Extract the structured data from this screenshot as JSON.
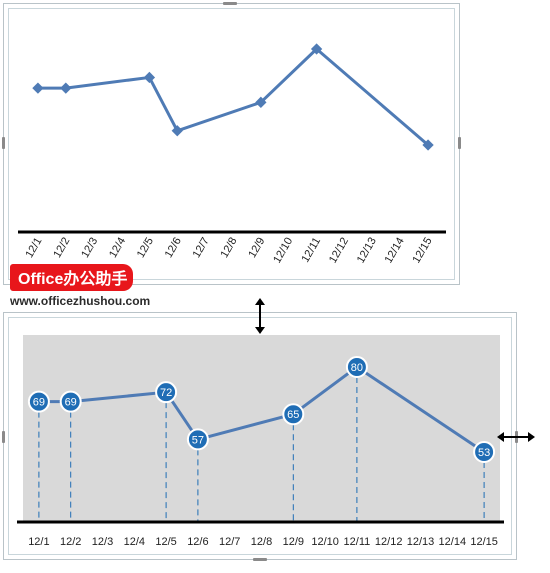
{
  "chart_data": [
    {
      "type": "line",
      "title": "",
      "xlabel": "",
      "ylabel": "",
      "categories": [
        "12/1",
        "12/2",
        "12/3",
        "12/4",
        "12/5",
        "12/6",
        "12/7",
        "12/8",
        "12/9",
        "12/10",
        "12/11",
        "12/12",
        "12/13",
        "12/14",
        "12/15"
      ],
      "series": [
        {
          "x": [
            "12/1",
            "12/2",
            "12/5",
            "12/6",
            "12/9",
            "12/11",
            "12/15"
          ],
          "values": [
            69,
            69,
            72,
            57,
            65,
            80,
            53
          ]
        }
      ],
      "data_labels": false,
      "drop_lines": false,
      "grid": false,
      "rotated_tick_labels": true,
      "ylim": [
        0,
        100
      ]
    },
    {
      "type": "line",
      "title": "",
      "xlabel": "",
      "ylabel": "",
      "categories": [
        "12/1",
        "12/2",
        "12/3",
        "12/4",
        "12/5",
        "12/6",
        "12/7",
        "12/8",
        "12/9",
        "12/10",
        "12/11",
        "12/12",
        "12/13",
        "12/14",
        "12/15"
      ],
      "series": [
        {
          "x": [
            "12/1",
            "12/2",
            "12/5",
            "12/6",
            "12/9",
            "12/11",
            "12/15"
          ],
          "values": [
            69,
            69,
            72,
            57,
            65,
            80,
            53
          ]
        }
      ],
      "data_labels": true,
      "drop_lines": true,
      "grid": false,
      "plot_background": "#d9d9d9",
      "ylim": [
        0,
        100
      ]
    }
  ],
  "colors": {
    "line": "#4f7bb5",
    "marker": "#1f6db5",
    "axis": "#000000",
    "watermark_badge": "#e8161b"
  },
  "watermark": {
    "badge": "Office办公助手",
    "url": "www.officezhushou.com"
  },
  "icons": [
    "resize-arrow-vertical-icon",
    "resize-arrow-horizontal-icon"
  ]
}
